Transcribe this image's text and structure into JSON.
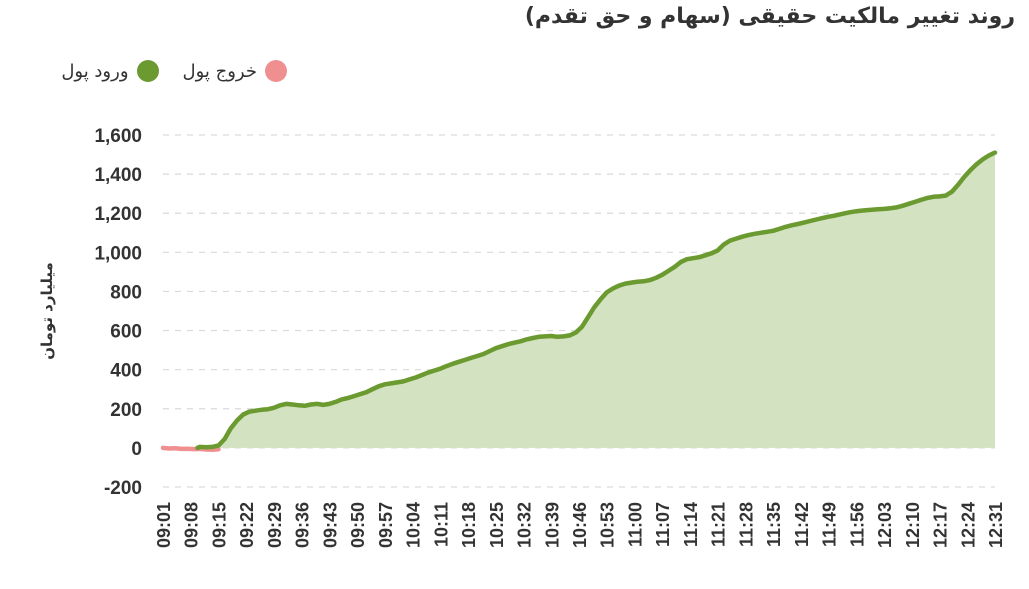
{
  "chart_data": {
    "type": "area",
    "title": "روند تغییر مالکیت حقیقی (سهام و حق تقدم)",
    "ylabel": "میلیارد تومان",
    "xlabel": "",
    "ylim": [
      -200,
      1600
    ],
    "yticks": [
      -200,
      0,
      200,
      400,
      600,
      800,
      1000,
      1200,
      1400,
      1600
    ],
    "ytick_labels": [
      "-200",
      "0",
      "200",
      "400",
      "600",
      "800",
      "1,000",
      "1,200",
      "1,400",
      "1,600"
    ],
    "x_tick_labels": [
      "09:01",
      "09:08",
      "09:15",
      "09:22",
      "09:29",
      "09:36",
      "09:43",
      "09:50",
      "09:57",
      "10:04",
      "10:11",
      "10:18",
      "10:25",
      "10:32",
      "10:39",
      "10:46",
      "10:53",
      "11:00",
      "11:07",
      "11:14",
      "11:21",
      "11:28",
      "11:35",
      "11:42",
      "11:49",
      "11:56",
      "12:03",
      "12:10",
      "12:17",
      "12:24",
      "12:31"
    ],
    "grid": true,
    "legend_position": "top-left",
    "series": [
      {
        "name": "ورود پول",
        "color": "#6b9a30",
        "fill": "#d3e2c0",
        "points": [
          [
            2.8,
            0
          ],
          [
            3.0,
            5
          ],
          [
            3.5,
            3
          ],
          [
            4.0,
            5
          ],
          [
            4.5,
            12
          ],
          [
            5.0,
            45
          ],
          [
            5.5,
            100
          ],
          [
            6.0,
            140
          ],
          [
            6.5,
            170
          ],
          [
            7.0,
            185
          ],
          [
            7.5,
            190
          ],
          [
            8.0,
            195
          ],
          [
            8.5,
            198
          ],
          [
            9.0,
            205
          ],
          [
            9.5,
            218
          ],
          [
            10.0,
            225
          ],
          [
            10.5,
            222
          ],
          [
            11.0,
            218
          ],
          [
            11.5,
            215
          ],
          [
            12.0,
            222
          ],
          [
            12.5,
            225
          ],
          [
            13.0,
            220
          ],
          [
            13.5,
            225
          ],
          [
            14.0,
            235
          ],
          [
            14.5,
            248
          ],
          [
            15.0,
            255
          ],
          [
            15.5,
            265
          ],
          [
            16.0,
            275
          ],
          [
            16.5,
            285
          ],
          [
            17.0,
            300
          ],
          [
            17.5,
            315
          ],
          [
            18.0,
            325
          ],
          [
            18.5,
            330
          ],
          [
            19.0,
            335
          ],
          [
            19.5,
            340
          ],
          [
            20.0,
            350
          ],
          [
            20.5,
            360
          ],
          [
            21.0,
            372
          ],
          [
            21.5,
            385
          ],
          [
            22.0,
            395
          ],
          [
            22.5,
            405
          ],
          [
            23.0,
            418
          ],
          [
            23.5,
            430
          ],
          [
            24.0,
            440
          ],
          [
            24.5,
            450
          ],
          [
            25.0,
            460
          ],
          [
            25.5,
            470
          ],
          [
            26.0,
            480
          ],
          [
            26.5,
            495
          ],
          [
            27.0,
            510
          ],
          [
            27.5,
            520
          ],
          [
            28.0,
            530
          ],
          [
            28.5,
            538
          ],
          [
            29.0,
            545
          ],
          [
            29.5,
            555
          ],
          [
            30.0,
            562
          ],
          [
            30.5,
            568
          ],
          [
            31.0,
            570
          ],
          [
            31.5,
            572
          ],
          [
            32.0,
            568
          ],
          [
            32.5,
            570
          ],
          [
            33.0,
            575
          ],
          [
            33.5,
            590
          ],
          [
            34.0,
            620
          ],
          [
            34.5,
            670
          ],
          [
            35.0,
            720
          ],
          [
            35.5,
            760
          ],
          [
            36.0,
            795
          ],
          [
            36.5,
            815
          ],
          [
            37.0,
            830
          ],
          [
            37.5,
            840
          ],
          [
            38.0,
            845
          ],
          [
            38.5,
            850
          ],
          [
            39.0,
            852
          ],
          [
            39.5,
            858
          ],
          [
            40.0,
            870
          ],
          [
            40.5,
            885
          ],
          [
            41.0,
            905
          ],
          [
            41.5,
            925
          ],
          [
            42.0,
            950
          ],
          [
            42.5,
            965
          ],
          [
            43.0,
            970
          ],
          [
            43.5,
            975
          ],
          [
            44.0,
            985
          ],
          [
            44.5,
            995
          ],
          [
            45.0,
            1010
          ],
          [
            45.5,
            1040
          ],
          [
            46.0,
            1060
          ],
          [
            46.5,
            1070
          ],
          [
            47.0,
            1080
          ],
          [
            47.5,
            1088
          ],
          [
            48.0,
            1095
          ],
          [
            48.5,
            1100
          ],
          [
            49.0,
            1105
          ],
          [
            49.5,
            1110
          ],
          [
            50.0,
            1120
          ],
          [
            50.5,
            1130
          ],
          [
            51.0,
            1138
          ],
          [
            51.5,
            1145
          ],
          [
            52.0,
            1152
          ],
          [
            52.5,
            1160
          ],
          [
            53.0,
            1168
          ],
          [
            53.5,
            1175
          ],
          [
            54.0,
            1182
          ],
          [
            54.5,
            1188
          ],
          [
            55.0,
            1195
          ],
          [
            55.5,
            1202
          ],
          [
            56.0,
            1208
          ],
          [
            56.5,
            1212
          ],
          [
            57.0,
            1215
          ],
          [
            57.5,
            1218
          ],
          [
            58.0,
            1220
          ],
          [
            58.5,
            1222
          ],
          [
            59.0,
            1225
          ],
          [
            59.5,
            1230
          ],
          [
            60.0,
            1238
          ],
          [
            60.5,
            1248
          ],
          [
            61.0,
            1258
          ],
          [
            61.5,
            1268
          ],
          [
            62.0,
            1278
          ],
          [
            62.5,
            1284
          ],
          [
            63.0,
            1286
          ],
          [
            63.5,
            1290
          ],
          [
            64.0,
            1310
          ],
          [
            64.5,
            1345
          ],
          [
            65.0,
            1385
          ],
          [
            65.5,
            1420
          ],
          [
            66.0,
            1450
          ],
          [
            66.5,
            1475
          ],
          [
            67.0,
            1495
          ],
          [
            67.5,
            1510
          ]
        ]
      },
      {
        "name": "خروج پول",
        "color": "#ef8f8f",
        "fill": "#f7d2d2",
        "points": [
          [
            0.0,
            0
          ],
          [
            0.5,
            -3
          ],
          [
            1.0,
            -2
          ],
          [
            1.5,
            -5
          ],
          [
            2.0,
            -4
          ],
          [
            2.5,
            -6
          ],
          [
            3.0,
            -5
          ],
          [
            3.5,
            -8
          ],
          [
            4.0,
            -10
          ],
          [
            4.5,
            -7
          ]
        ]
      }
    ]
  }
}
